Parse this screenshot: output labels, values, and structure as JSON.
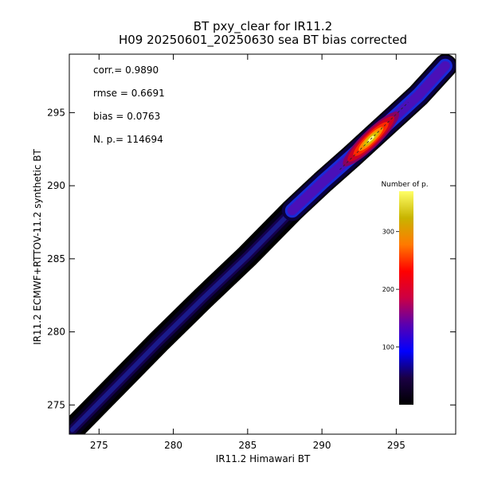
{
  "chart_data": {
    "type": "heatmap",
    "title": "BT pxy_clear for IR11.2",
    "subtitle": "H09 20250601_20250630 sea BT bias corrected",
    "xlabel": "IR11.2 Himawari BT",
    "ylabel": "IR11.2 ECMWF+RTTOV-11.2 synthetic BT",
    "xlim": [
      273,
      299
    ],
    "ylim": [
      273,
      299
    ],
    "xticks": [
      275,
      280,
      285,
      290,
      295
    ],
    "yticks": [
      275,
      280,
      285,
      290,
      295
    ],
    "stats": [
      {
        "label": "corr.=",
        "value": "0.9890"
      },
      {
        "label": "rmse =",
        "value": "0.6691"
      },
      {
        "label": "bias =",
        "value": "0.0763"
      },
      {
        "label": "N. p.=",
        "value": "114694"
      }
    ],
    "density_ridge": {
      "x": [
        273.2,
        276,
        279,
        282,
        285,
        288,
        290,
        292,
        293.5,
        295,
        296.5,
        298.3
      ],
      "y": [
        273.3,
        276.2,
        279.3,
        282.3,
        285.2,
        288.3,
        290.2,
        292.0,
        293.4,
        294.8,
        296.2,
        298.2
      ],
      "peak_center": [
        293.3,
        293.2
      ],
      "peak_counts": 360
    },
    "colorbar": {
      "title": "Number of p.",
      "ticks": [
        100,
        200,
        300
      ],
      "range": [
        0,
        370
      ],
      "colors": [
        "#000000",
        "#1a0044",
        "#0000ff",
        "#5a00b0",
        "#cc0044",
        "#ff0000",
        "#ff7a00",
        "#c8b400",
        "#ffff66"
      ]
    },
    "legend_position": "right"
  }
}
